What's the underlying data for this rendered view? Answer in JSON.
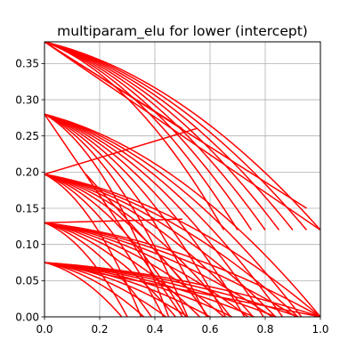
{
  "chart_data": {
    "type": "line",
    "title": "multiparam_elu for lower (intercept)",
    "xlabel": "",
    "ylabel": "",
    "xlim": [
      0.0,
      1.0
    ],
    "ylim": [
      0.0,
      0.38
    ],
    "x_ticks": [
      "0.0",
      "0.2",
      "0.4",
      "0.6",
      "0.8",
      "1.0"
    ],
    "y_ticks": [
      "0.00",
      "0.05",
      "0.10",
      "0.15",
      "0.20",
      "0.25",
      "0.30",
      "0.35"
    ],
    "grid": true,
    "legend": "none",
    "line_color": "#ff0000",
    "families": [
      {
        "start_y": 0.38,
        "x_end_min": 0.65,
        "x_end_max": 1.0,
        "end_y": 0.12,
        "count": 8
      },
      {
        "start_y": 0.28,
        "x_end_min": 0.45,
        "x_end_max": 1.0,
        "end_y": 0.0,
        "count": 9
      },
      {
        "start_y": 0.197,
        "x_end_min": 0.35,
        "x_end_max": 1.0,
        "end_y": 0.0,
        "count": 9
      },
      {
        "start_y": 0.13,
        "x_end_min": 0.3,
        "x_end_max": 1.0,
        "end_y": 0.0,
        "count": 9
      },
      {
        "start_y": 0.075,
        "x_end_min": 0.28,
        "x_end_max": 1.0,
        "end_y": 0.0,
        "count": 10
      }
    ],
    "straight_segments": [
      {
        "x": [
          0.0,
          1.0
        ],
        "y": [
          0.38,
          0.12
        ]
      },
      {
        "x": [
          0.0,
          0.95
        ],
        "y": [
          0.38,
          0.15
        ]
      },
      {
        "x": [
          0.0,
          0.5
        ],
        "y": [
          0.38,
          0.26
        ]
      },
      {
        "x": [
          0.0,
          0.55
        ],
        "y": [
          0.197,
          0.26
        ]
      },
      {
        "x": [
          0.0,
          0.5
        ],
        "y": [
          0.13,
          0.135
        ]
      },
      {
        "x": [
          0.0,
          0.5
        ],
        "y": [
          0.28,
          0.0
        ]
      },
      {
        "x": [
          0.15,
          0.5
        ],
        "y": [
          0.197,
          0.05
        ]
      },
      {
        "x": [
          0.0,
          1.0
        ],
        "y": [
          0.075,
          0.0
        ]
      }
    ]
  }
}
